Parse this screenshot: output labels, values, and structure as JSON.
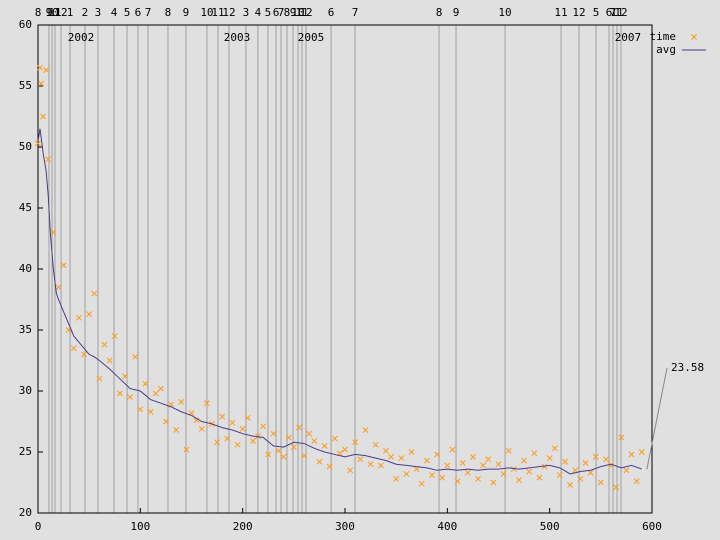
{
  "chart_data": {
    "type": "scatter",
    "xlim": [
      0,
      600
    ],
    "ylim": [
      20,
      60
    ],
    "xticks": [
      0,
      100,
      200,
      300,
      400,
      500,
      600
    ],
    "yticks": [
      20,
      25,
      30,
      35,
      40,
      45,
      50,
      55,
      60
    ],
    "legend": "top-right",
    "month_lines": [
      {
        "value": 0,
        "label": "8"
      },
      {
        "value": 10.7,
        "label": "9"
      },
      {
        "value": 13.7,
        "label": "10"
      },
      {
        "value": 16.6,
        "label": "11"
      },
      {
        "value": 22.5,
        "label": "12"
      },
      {
        "value": 31.3,
        "label": "1"
      },
      {
        "value": 45.9,
        "label": "2"
      },
      {
        "value": 58.6,
        "label": "3"
      },
      {
        "value": 74.3,
        "label": "4"
      },
      {
        "value": 87,
        "label": "5"
      },
      {
        "value": 97.7,
        "label": "6"
      },
      {
        "value": 107.5,
        "label": "7"
      },
      {
        "value": 127,
        "label": "8"
      },
      {
        "value": 144.6,
        "label": "9"
      },
      {
        "value": 165.1,
        "label": "10"
      },
      {
        "value": 175.9,
        "label": "11"
      },
      {
        "value": 186.6,
        "label": "12"
      },
      {
        "value": 203.2,
        "label": "3"
      },
      {
        "value": 214.9,
        "label": "4"
      },
      {
        "value": 224.7,
        "label": "5"
      },
      {
        "value": 232.6,
        "label": "6"
      },
      {
        "value": 237.5,
        "label": "7"
      },
      {
        "value": 243.3,
        "label": "8"
      },
      {
        "value": 249.2,
        "label": "9"
      },
      {
        "value": 254.1,
        "label": "10"
      },
      {
        "value": 258,
        "label": "11"
      },
      {
        "value": 261.9,
        "label": "12"
      },
      {
        "value": 286.4,
        "label": "6"
      },
      {
        "value": 309.8,
        "label": "7"
      },
      {
        "value": 391.9,
        "label": "8"
      },
      {
        "value": 408.5,
        "label": "9"
      },
      {
        "value": 456.4,
        "label": "10"
      },
      {
        "value": 511.1,
        "label": "11"
      },
      {
        "value": 528.7,
        "label": "12"
      },
      {
        "value": 545.3,
        "label": "5"
      },
      {
        "value": 558,
        "label": "6"
      },
      {
        "value": 561.9,
        "label": "7"
      },
      {
        "value": 565.8,
        "label": "11"
      },
      {
        "value": 569.7,
        "label": "12"
      }
    ],
    "year_labels": [
      {
        "x": 42,
        "text": "2002"
      },
      {
        "x": 194.5,
        "text": "2003"
      },
      {
        "x": 266.8,
        "text": "2005"
      },
      {
        "x": 576.5,
        "text": "2007"
      }
    ],
    "last_value": 23.58,
    "last_x": 595,
    "series": [
      {
        "name": "time",
        "color": "#ff9a1a",
        "x": [
          0,
          5,
          10,
          15,
          20,
          25,
          30,
          35,
          40,
          45,
          50,
          55,
          60,
          65,
          70,
          75,
          80,
          85,
          90,
          95,
          100,
          105,
          110,
          115,
          120,
          125,
          130,
          135,
          140,
          145,
          150,
          155,
          160,
          165,
          170,
          175,
          180,
          185,
          190,
          195,
          200,
          205,
          210,
          215,
          220,
          225,
          230,
          235,
          240,
          245,
          250,
          255,
          260,
          265,
          270,
          275,
          280,
          285,
          290,
          295,
          300,
          305,
          310,
          315,
          320,
          325,
          330,
          335,
          340,
          345,
          350,
          355,
          360,
          365,
          370,
          375,
          380,
          385,
          390,
          395,
          400,
          405,
          410,
          415,
          420,
          425,
          430,
          435,
          440,
          445,
          450,
          455,
          460,
          465,
          470,
          475,
          480,
          485,
          490,
          495,
          500,
          505,
          510,
          515,
          520,
          525,
          530,
          535,
          540,
          545,
          550,
          555,
          560,
          565,
          570,
          575,
          580,
          585,
          590,
          2,
          3,
          8
        ],
        "values": [
          50.3,
          52.5,
          49,
          43,
          38.5,
          40.3,
          35,
          33.5,
          36,
          33,
          36.3,
          38,
          31,
          33.8,
          32.5,
          34.5,
          29.8,
          31.2,
          29.5,
          32.8,
          28.5,
          30.6,
          28.3,
          29.8,
          30.2,
          27.5,
          28.9,
          26.8,
          29.1,
          25.2,
          28.2,
          27.6,
          26.9,
          29,
          27.3,
          25.8,
          27.9,
          26.1,
          27.4,
          25.6,
          26.9,
          27.8,
          25.9,
          26.3,
          27.1,
          24.8,
          26.5,
          25.1,
          24.6,
          26.2,
          25.4,
          27.0,
          24.7,
          26.5,
          25.9,
          24.2,
          25.5,
          23.8,
          26.1,
          24.9,
          25.2,
          23.5,
          25.8,
          24.4,
          26.8,
          24.0,
          25.6,
          23.9,
          25.1,
          24.6,
          22.8,
          24.5,
          23.2,
          25.0,
          23.6,
          22.4,
          24.3,
          23.1,
          24.8,
          22.9,
          23.9,
          25.2,
          22.6,
          24.1,
          23.3,
          24.6,
          22.8,
          23.9,
          24.4,
          22.5,
          24.0,
          23.2,
          25.1,
          23.6,
          22.7,
          24.3,
          23.4,
          24.9,
          22.9,
          23.8,
          24.5,
          25.3,
          23.1,
          24.2,
          22.3,
          23.5,
          22.8,
          24.1,
          23.3,
          24.6,
          22.5,
          24.4,
          23.9,
          22.1,
          26.2,
          23.5,
          24.8,
          22.6,
          25.0,
          56.5,
          55.2,
          56.3
        ]
      },
      {
        "name": "avg",
        "color": "#483d8b",
        "x": [
          0,
          2,
          5,
          8,
          10,
          12,
          15,
          18,
          20,
          25,
          30,
          35,
          40,
          45,
          50,
          55,
          60,
          70,
          80,
          90,
          100,
          110,
          120,
          130,
          140,
          150,
          160,
          170,
          180,
          190,
          200,
          210,
          220,
          230,
          240,
          250,
          260,
          270,
          280,
          290,
          300,
          310,
          320,
          330,
          340,
          350,
          360,
          370,
          380,
          390,
          400,
          410,
          420,
          430,
          440,
          450,
          460,
          470,
          480,
          490,
          500,
          510,
          520,
          530,
          540,
          550,
          560,
          570,
          580,
          590
        ],
        "values": [
          50.5,
          51.5,
          49.5,
          48,
          46,
          43,
          40,
          38,
          37.5,
          36.5,
          35.5,
          34.5,
          34,
          33.5,
          33,
          32.8,
          32.5,
          31.8,
          31,
          30.2,
          30,
          29.3,
          29,
          28.7,
          28.3,
          28,
          27.5,
          27.3,
          27,
          26.8,
          26.5,
          26.3,
          26.2,
          25.5,
          25.4,
          25.8,
          25.7,
          25.3,
          25,
          24.8,
          24.6,
          24.8,
          24.7,
          24.5,
          24.3,
          24,
          23.9,
          23.8,
          23.7,
          23.5,
          23.6,
          23.5,
          23.6,
          23.5,
          23.6,
          23.6,
          23.7,
          23.6,
          23.7,
          23.8,
          23.9,
          23.7,
          23.2,
          23.4,
          23.5,
          23.8,
          24,
          23.7,
          23.9,
          23.6
        ]
      }
    ]
  }
}
